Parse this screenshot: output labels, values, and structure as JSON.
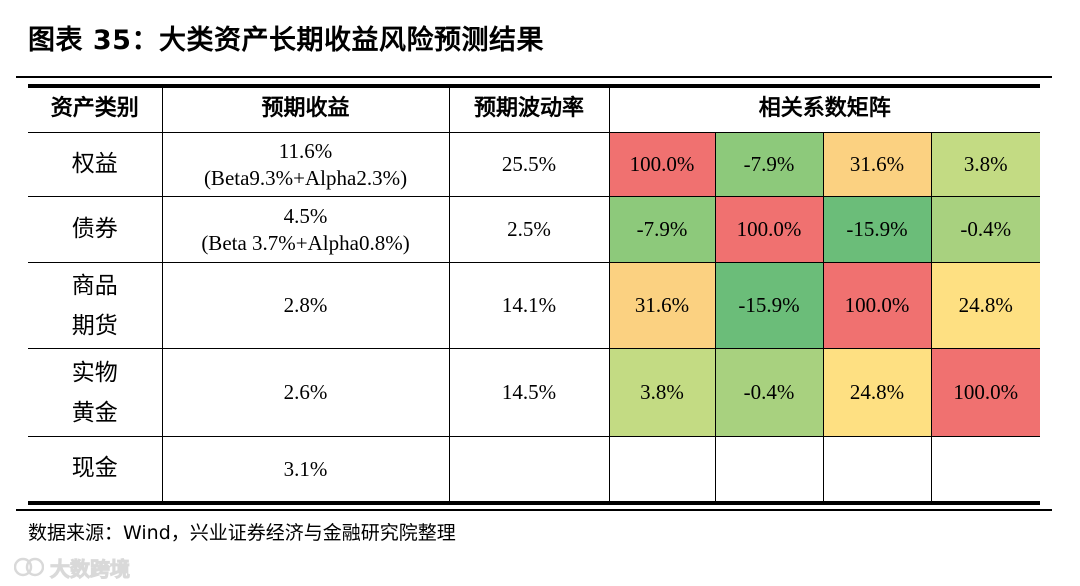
{
  "title": "图表 35：大类资产长期收益风险预测结果",
  "table": {
    "headers": {
      "asset_class": "资产类别",
      "expected_return": "预期收益",
      "expected_volatility": "预期波动率",
      "correlation_matrix": "相关系数矩阵"
    },
    "rows": [
      {
        "name_line1": "权益",
        "name_line2": "",
        "return_main": "11.6%",
        "return_detail": "(Beta9.3%+Alpha2.3%)",
        "volatility": "25.5%",
        "correlations": [
          "100.0%",
          "-7.9%",
          "31.6%",
          "3.8%"
        ],
        "colors": [
          "#f07170",
          "#8dc97b",
          "#fbd181",
          "#c3db83"
        ]
      },
      {
        "name_line1": "债券",
        "name_line2": "",
        "return_main": "4.5%",
        "return_detail": "(Beta 3.7%+Alpha0.8%)",
        "volatility": "2.5%",
        "correlations": [
          "-7.9%",
          "100.0%",
          "-15.9%",
          "-0.4%"
        ],
        "colors": [
          "#8dc97b",
          "#f07170",
          "#6bbd79",
          "#a8d17f"
        ]
      },
      {
        "name_line1": "商品",
        "name_line2": "期货",
        "return_main": "2.8%",
        "return_detail": "",
        "volatility": "14.1%",
        "correlations": [
          "31.6%",
          "-15.9%",
          "100.0%",
          "24.8%"
        ],
        "colors": [
          "#fbd181",
          "#6bbd79",
          "#f07170",
          "#fee082"
        ]
      },
      {
        "name_line1": "实物",
        "name_line2": "黄金",
        "return_main": "2.6%",
        "return_detail": "",
        "volatility": "14.5%",
        "correlations": [
          "3.8%",
          "-0.4%",
          "24.8%",
          "100.0%"
        ],
        "colors": [
          "#c3db83",
          "#a8d17f",
          "#fee082",
          "#f07170"
        ]
      },
      {
        "name_line1": "现金",
        "name_line2": "",
        "return_main": "3.1%",
        "return_detail": "",
        "volatility": "",
        "correlations": [
          "",
          "",
          "",
          ""
        ],
        "colors": [
          "#ffffff",
          "#ffffff",
          "#ffffff",
          "#ffffff"
        ]
      }
    ]
  },
  "footer": "数据来源：Wind，兴业证券经济与金融研究院整理",
  "watermark": {
    "text": "大数跨境",
    "icon": "brand-logo-icon"
  }
}
